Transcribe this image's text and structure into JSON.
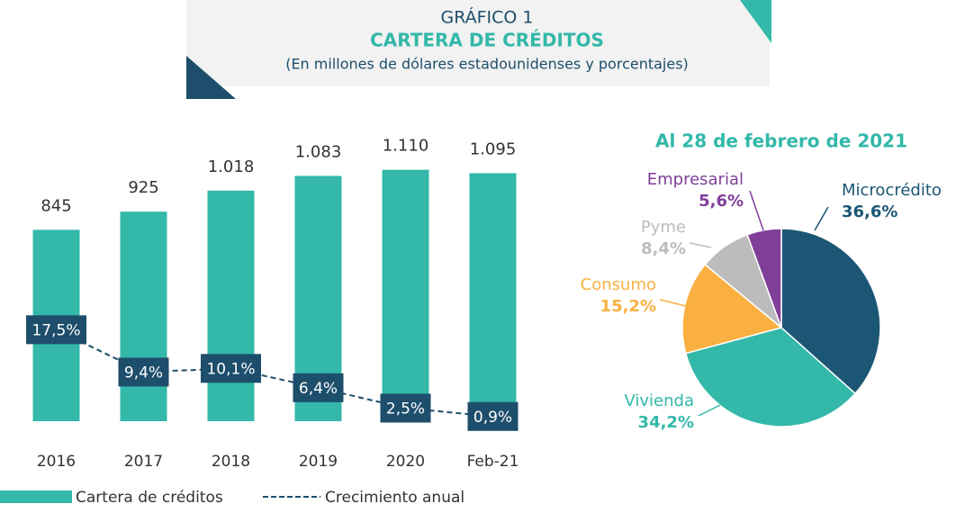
{
  "header": {
    "label": "GRÁFICO 1",
    "title": "CARTERA DE CRÉDITOS",
    "subtitle": "(En millones de dólares estadounidenses y porcentajes)"
  },
  "chart_data": [
    {
      "type": "bar",
      "categories": [
        "2016",
        "2017",
        "2018",
        "2019",
        "2020",
        "Feb-21"
      ],
      "series": [
        {
          "name": "Cartera de créditos",
          "color": "#33b8a9",
          "values": [
            845,
            925,
            1018,
            1083,
            1110,
            1095
          ],
          "value_labels": [
            "845",
            "925",
            "1.018",
            "1.083",
            "1.110",
            "1.095"
          ]
        },
        {
          "name": "Crecimiento anual",
          "color": "#1d4e6b",
          "axis": "y2",
          "values": [
            17.5,
            9.4,
            10.1,
            6.4,
            2.5,
            0.9
          ],
          "value_labels": [
            "17,5%",
            "9,4%",
            "10,1%",
            "6,4%",
            "2,5%",
            "0,9%"
          ]
        }
      ],
      "ylim": [
        0,
        1200
      ],
      "y2lim": [
        0,
        52
      ]
    },
    {
      "type": "pie",
      "title": "Al 28 de febrero de 2021",
      "categories": [
        "Microcrédito",
        "Vivienda",
        "Consumo",
        "Pyme",
        "Empresarial"
      ],
      "values": [
        36.6,
        34.2,
        15.2,
        8.4,
        5.6
      ],
      "value_labels": [
        "36,6%",
        "34,2%",
        "15,2%",
        "8,4%",
        "5,6%"
      ],
      "colors": [
        "#1b5675",
        "#33b8a9",
        "#f9b040",
        "#bcbcbc",
        "#7f3f98"
      ]
    }
  ]
}
